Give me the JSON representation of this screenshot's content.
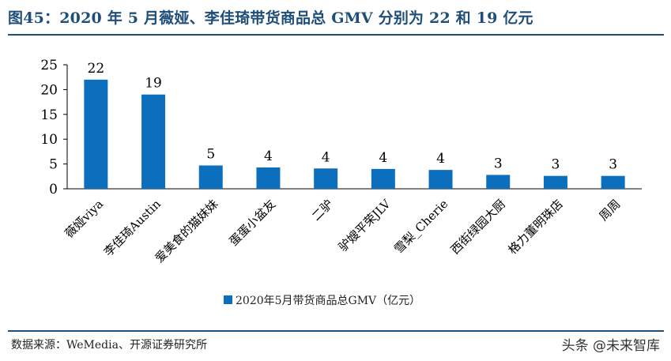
{
  "header": {
    "title": "图45：2020 年 5 月薇娅、李佳琦带货商品总 GMV 分别为 22 和 19 亿元"
  },
  "footer": {
    "source": "数据来源：WeMedia、开源证券研究所",
    "watermark": "头条 @未来智库"
  },
  "colors": {
    "title": "#1f4e79",
    "bar": "#0b6fbd"
  },
  "chart_data": {
    "type": "bar",
    "categories": [
      "薇娅viya",
      "李佳琦Austin",
      "爱美食的猫妹妹",
      "蛋蛋小盆友",
      "二驴",
      "驴嫂平荣JLV",
      "雪梨_Cherie",
      "西街绿园大厨",
      "格力董明珠店",
      "周周"
    ],
    "series": [
      {
        "name": "2020年5月带货商品总GMV（亿元）",
        "values": [
          22,
          19,
          4.7,
          4.3,
          4.1,
          4.0,
          3.8,
          2.8,
          2.6,
          2.6
        ],
        "labels": [
          "22",
          "19",
          "5",
          "4",
          "4",
          "4",
          "4",
          "3",
          "3",
          "3"
        ]
      }
    ],
    "y_ticks": [
      "0",
      "5",
      "10",
      "15",
      "20",
      "25"
    ],
    "ylim": [
      0,
      25
    ],
    "xlabel": "",
    "ylabel": "",
    "grid": false,
    "legend": "bottom-center"
  }
}
